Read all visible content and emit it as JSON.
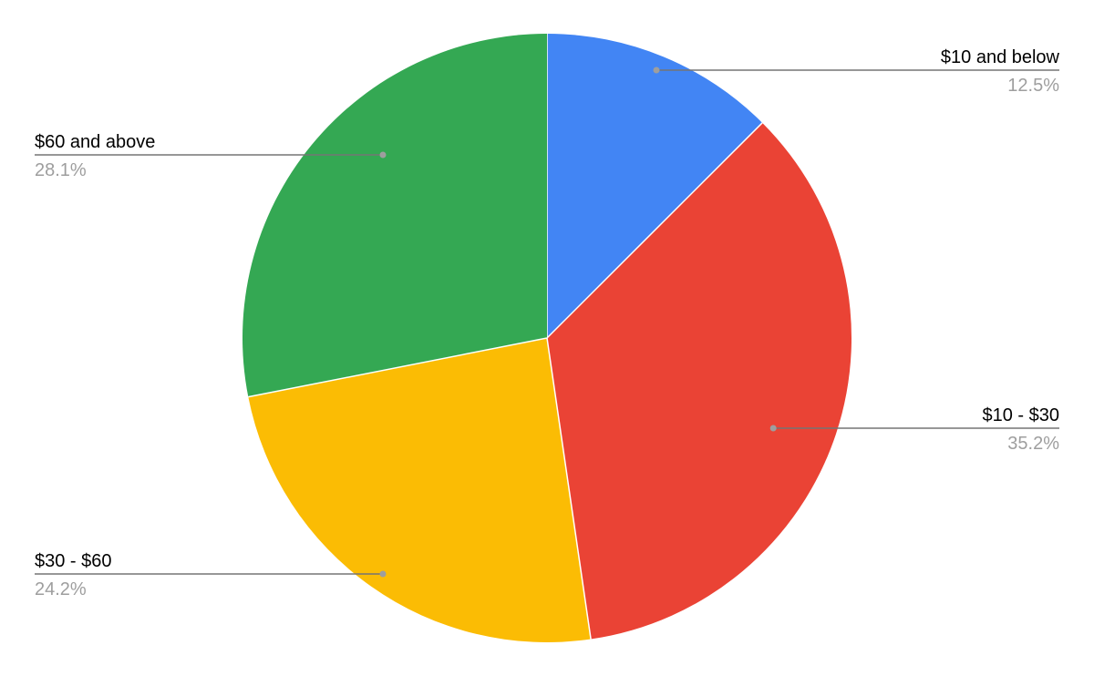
{
  "chart_data": {
    "type": "pie",
    "title": "",
    "slices": [
      {
        "label": "$10 and below",
        "percent_label": "12.5%",
        "value": 12.5,
        "color": "#4285f4"
      },
      {
        "label": "$10 - $30",
        "percent_label": "35.2%",
        "value": 35.2,
        "color": "#ea4335"
      },
      {
        "label": "$30 - $60",
        "percent_label": "24.2%",
        "value": 24.2,
        "color": "#fbbc04"
      },
      {
        "label": "$60 and above",
        "percent_label": "28.1%",
        "value": 28.1,
        "color": "#34a853"
      }
    ],
    "start": "12 o'clock",
    "direction": "clockwise",
    "legend": "none",
    "labels": "outside, with leader lines"
  }
}
